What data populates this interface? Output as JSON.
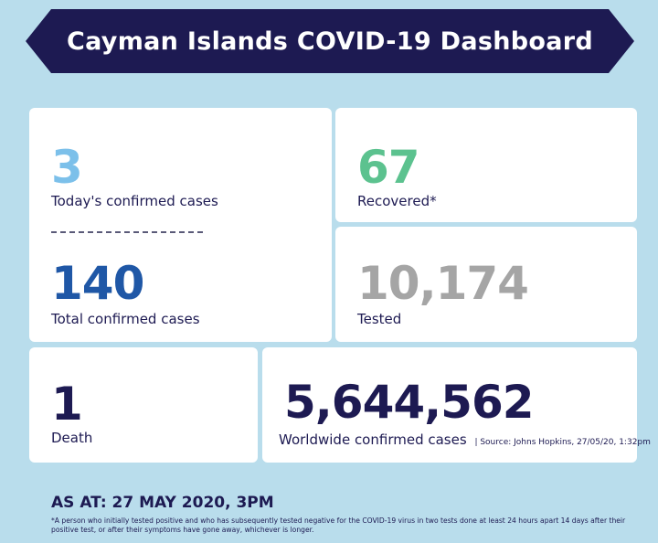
{
  "banner": {
    "title": "Cayman Islands COVID-19 Dashboard"
  },
  "cards": {
    "today": {
      "value": "3",
      "label": "Today's confirmed cases"
    },
    "total": {
      "value": "140",
      "label": "Total confirmed cases"
    },
    "recovered": {
      "value": "67",
      "label": "Recovered*"
    },
    "tested": {
      "value": "10,174",
      "label": "Tested"
    },
    "death": {
      "value": "1",
      "label": "Death"
    },
    "worldwide": {
      "value": "5,644,562",
      "label": "Worldwide confirmed cases",
      "source": "| Source: Johns Hopkins, 27/05/20, 1:32pm"
    }
  },
  "footer": {
    "as_at": "AS AT: 27 MAY 2020, 3PM",
    "note": "*A person who initially tested positive and who has subsequently tested negative for the COVID-19 virus in two tests done at least 24 hours apart 14 days after their positive test, or after their symptoms have gone away, whichever is longer."
  },
  "colors": {
    "background": "#b9ddec",
    "navy": "#1d1a52",
    "today_blue": "#7cc0ea",
    "total_blue": "#1f57a6",
    "recovered_green": "#5cc28f",
    "tested_gray": "#a5a5a5"
  }
}
